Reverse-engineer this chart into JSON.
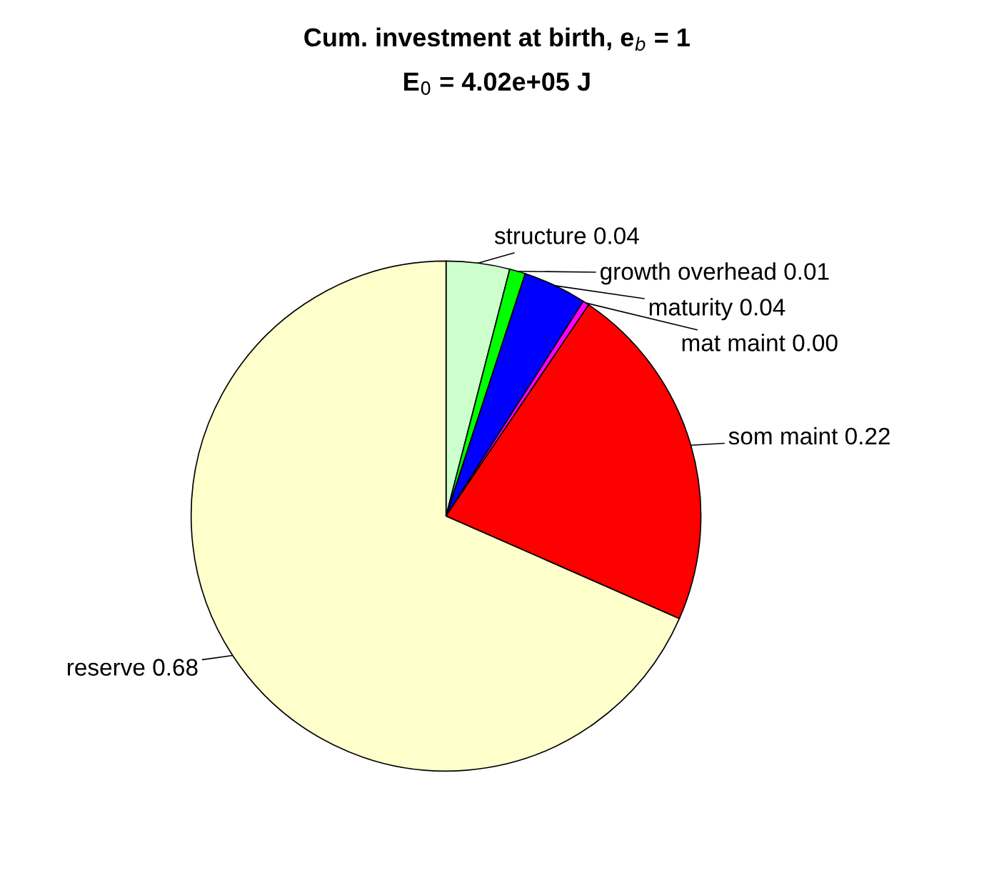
{
  "chart_data": {
    "type": "pie",
    "title": "Cum. investment at birth, e$_{b}$ = 1",
    "subtitle": "E$_{0}$ = 4.02e+05 J",
    "categories": [
      "structure",
      "growth overhead",
      "maturity",
      "mat maint",
      "som maint",
      "reserve"
    ],
    "values": [
      0.04,
      0.01,
      0.04,
      0.004,
      0.22,
      0.68
    ],
    "value_labels": [
      "0.04",
      "0.01",
      "0.04",
      "0.00",
      "0.22",
      "0.68"
    ],
    "colors": [
      "#ccffcc",
      "#00ff00",
      "#0000ff",
      "#ff00ff",
      "#ff0000",
      "#ffffcc"
    ],
    "legend": false
  }
}
